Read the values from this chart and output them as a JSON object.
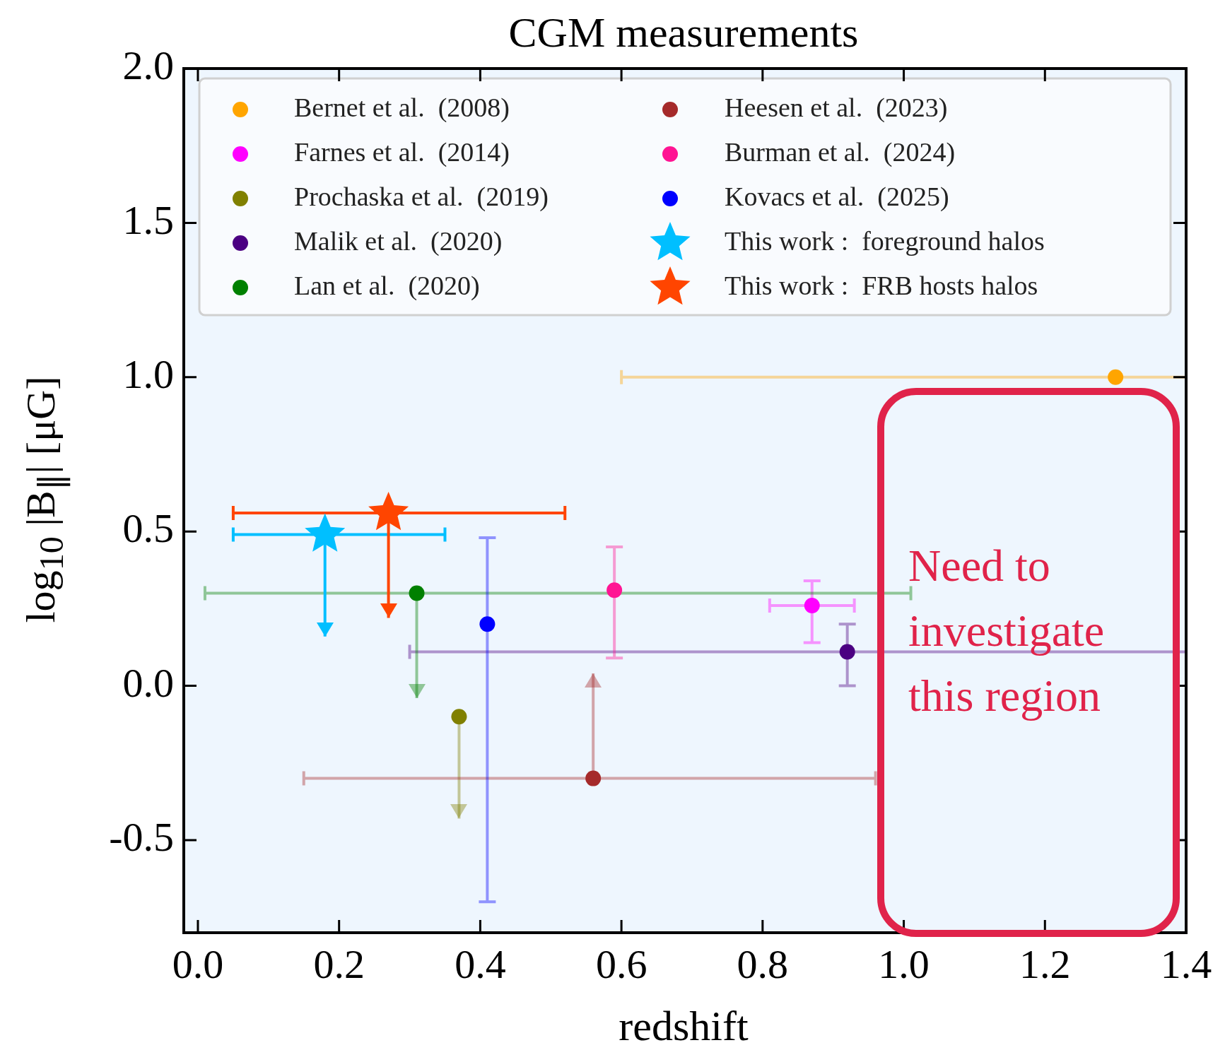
{
  "chart_data": {
    "type": "scatter",
    "title": "CGM measurements",
    "xlabel": "redshift",
    "ylabel": "log$_{10}$ |B$_{∥}$| [μG]",
    "xlim": [
      -0.02,
      1.4
    ],
    "xticks": [
      {
        "value": 0,
        "label": "0.0"
      },
      {
        "value": 0.2,
        "label": "0.2"
      },
      {
        "value": 0.4,
        "label": "0.4"
      },
      {
        "value": 0.6,
        "label": "0.6"
      },
      {
        "value": 0.8,
        "label": "0.8"
      },
      {
        "value": 1,
        "label": "1.0"
      },
      {
        "value": 1.2,
        "label": "1.2"
      },
      {
        "value": 1.4,
        "label": "1.4"
      }
    ],
    "ylim": [
      -0.8,
      2.0
    ],
    "yticks": [
      {
        "value": -0.5,
        "label": "-0.5"
      },
      {
        "value": 0,
        "label": "0.0"
      },
      0.5,
      {
        "value": 1,
        "label": "1.0"
      },
      1.5,
      {
        "value": 2,
        "label": "2.0"
      }
    ],
    "grid": false,
    "legend": "top",
    "marker": "circle",
    "annotations": [
      "Need to investigate this region"
    ],
    "series": [
      {
        "name": "Bernet et al.  (2008)",
        "color": "#ffa500",
        "x": [
          1.3
        ],
        "values": [
          1.0
        ],
        "xerrors": [
          [
            0.6,
            1.4
          ]
        ]
      },
      {
        "name": "Farnes et al.  (2014)",
        "color": "#ff00ff",
        "x": [
          0.87
        ],
        "values": [
          0.26
        ],
        "xerrors": [
          [
            0.81,
            0.93
          ]
        ],
        "errors": [
          [
            0.14,
            0.34
          ]
        ]
      },
      {
        "name": "Prochaska et al.  (2019)",
        "color": "#808000",
        "x": [
          0.37
        ],
        "values": [
          -0.1
        ],
        "errors": [
          [
            -0.43,
            -0.1
          ]
        ]
      },
      {
        "name": "Malik et al.  (2020)",
        "color": "#4b0082",
        "x": [
          0.92
        ],
        "values": [
          0.11
        ],
        "xerrors": [
          [
            0.3,
            1.4
          ]
        ],
        "errors": [
          [
            0.0,
            0.2
          ]
        ]
      },
      {
        "name": "Lan et al.  (2020)",
        "color": "#008000",
        "x": [
          0.31
        ],
        "values": [
          0.3
        ],
        "xerrors": [
          [
            0.01,
            1.01
          ]
        ],
        "errors": [
          [
            -0.04,
            0.3
          ]
        ]
      },
      {
        "name": "Heesen et al.  (2023)",
        "color": "#a52a2a",
        "x": [
          0.56
        ],
        "values": [
          -0.3
        ],
        "xerrors": [
          [
            0.15,
            0.96
          ]
        ],
        "errors": [
          [
            -0.3,
            0.04
          ]
        ]
      },
      {
        "name": "Burman et al.  (2024)",
        "color": "#ff1493",
        "x": [
          0.59
        ],
        "values": [
          0.31
        ],
        "errors": [
          [
            0.09,
            0.45
          ]
        ]
      },
      {
        "name": "Kovacs et al.  (2025)",
        "color": "#0000ff",
        "x": [
          0.41
        ],
        "values": [
          0.2
        ],
        "errors": [
          [
            -0.7,
            0.48
          ]
        ]
      },
      {
        "name": "This work :  foreground halos",
        "color": "#00bfff",
        "marker": "star",
        "x": [
          0.18
        ],
        "values": [
          0.49
        ],
        "xerrors": [
          [
            0.05,
            0.35
          ]
        ],
        "errors": [
          [
            0.16,
            0.49
          ]
        ]
      },
      {
        "name": "This work :  FRB hosts halos",
        "color": "#ff4500",
        "marker": "star",
        "x": [
          0.27
        ],
        "values": [
          0.56
        ],
        "xerrors": [
          [
            0.05,
            0.52
          ]
        ],
        "errors": [
          [
            0.22,
            0.56
          ]
        ]
      }
    ]
  }
}
